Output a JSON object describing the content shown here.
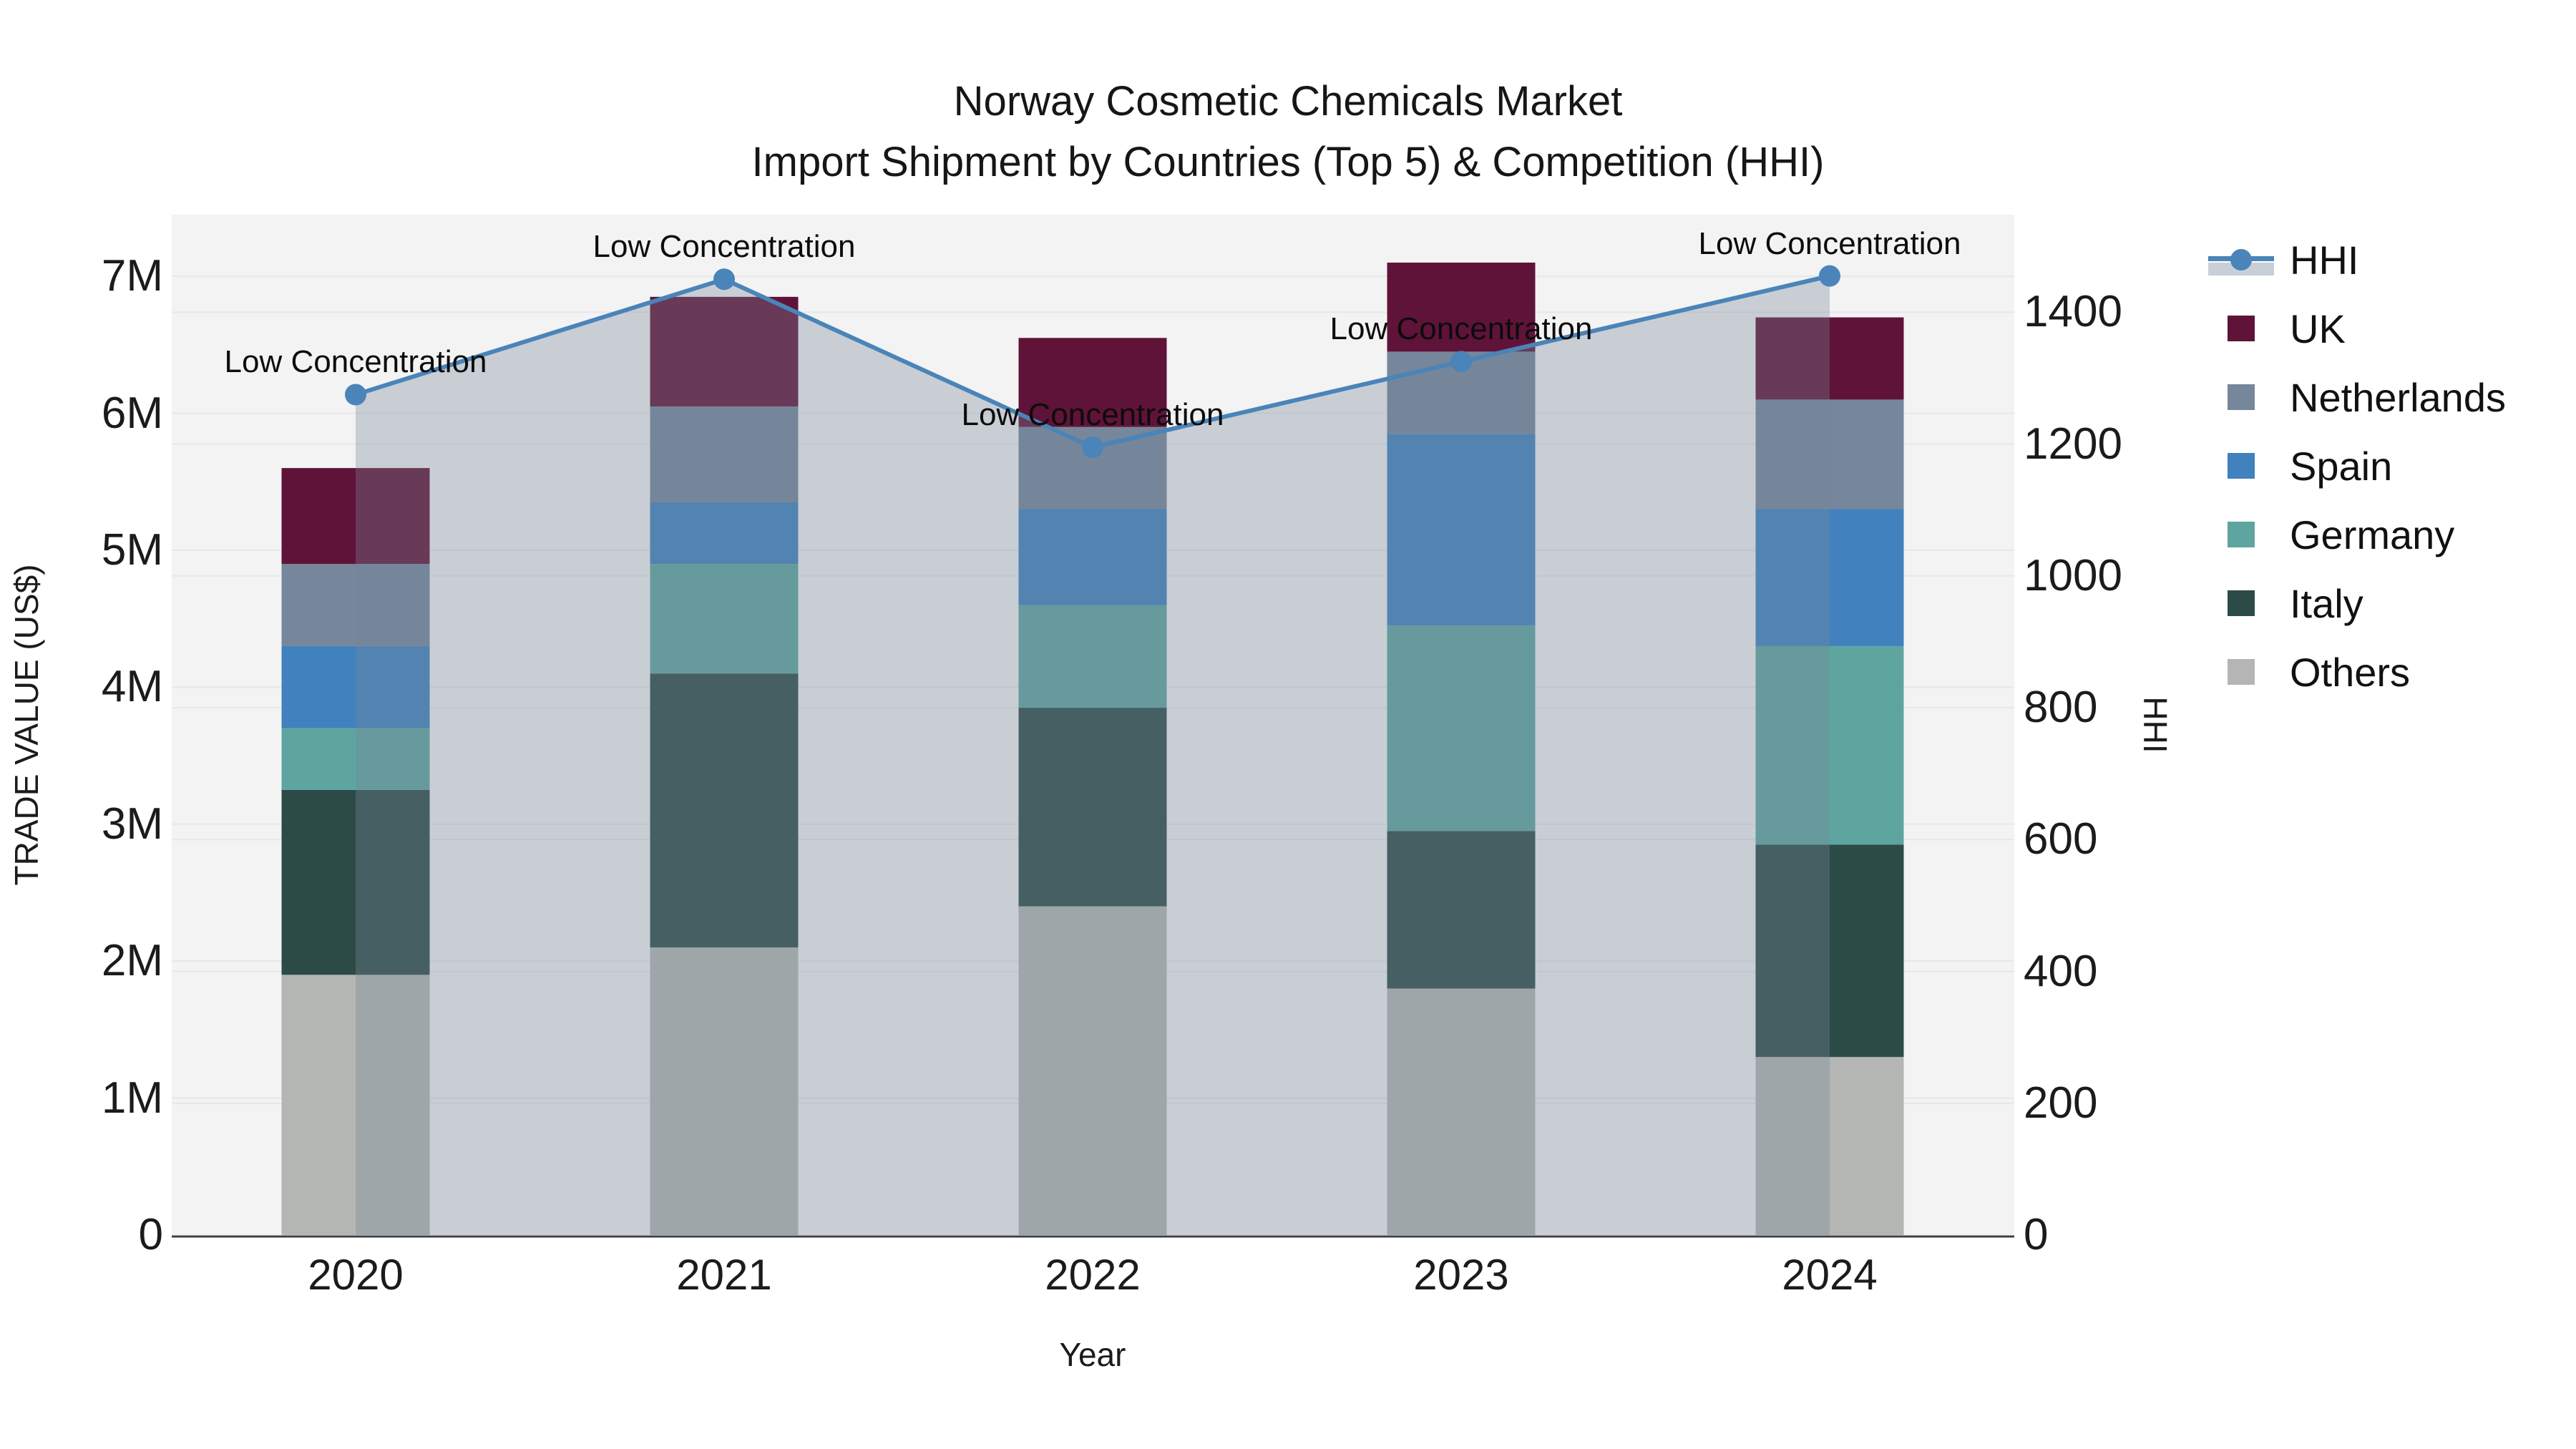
{
  "header": {
    "title": "Norway Cosmetic Chemicals Market",
    "subtitle": "Import Shipment by Countries (Top 5) & Competition (HHI)"
  },
  "axes": {
    "x": {
      "title": "Year",
      "ticks": [
        "2020",
        "2021",
        "2022",
        "2023",
        "2024"
      ]
    },
    "left": {
      "title": "TRADE VALUE (US$)",
      "ticks": [
        {
          "label": "0",
          "value": 0
        },
        {
          "label": "1M",
          "value": 1
        },
        {
          "label": "2M",
          "value": 2
        },
        {
          "label": "3M",
          "value": 3
        },
        {
          "label": "4M",
          "value": 4
        },
        {
          "label": "5M",
          "value": 5
        },
        {
          "label": "6M",
          "value": 6
        },
        {
          "label": "7M",
          "value": 7
        }
      ]
    },
    "right": {
      "title": "HHI",
      "ticks": [
        {
          "label": "0",
          "value": 0
        },
        {
          "label": "200",
          "value": 200
        },
        {
          "label": "400",
          "value": 400
        },
        {
          "label": "600",
          "value": 600
        },
        {
          "label": "800",
          "value": 800
        },
        {
          "label": "1000",
          "value": 1000
        },
        {
          "label": "1200",
          "value": 1200
        },
        {
          "label": "1400",
          "value": 1400
        }
      ]
    }
  },
  "legend": {
    "items": [
      {
        "label": "HHI",
        "type": "line",
        "color": "#4a84b8"
      },
      {
        "label": "UK",
        "type": "swatch",
        "color": "#601338"
      },
      {
        "label": "Netherlands",
        "type": "swatch",
        "color": "#76869b"
      },
      {
        "label": "Spain",
        "type": "swatch",
        "color": "#4181bd"
      },
      {
        "label": "Germany",
        "type": "swatch",
        "color": "#5ea5a0"
      },
      {
        "label": "Italy",
        "type": "swatch",
        "color": "#2c4b47"
      },
      {
        "label": "Others",
        "type": "swatch",
        "color": "#b3b6b3"
      }
    ]
  },
  "chart_data": {
    "type": "combo-stacked-bar-line",
    "title": "Norway Cosmetic Chemicals Market Import Shipment by Countries (Top 5) & Competition (HHI)",
    "categories": [
      "2020",
      "2021",
      "2022",
      "2023",
      "2024"
    ],
    "unit_left": "M US$",
    "ylim_left": [
      0,
      7.45
    ],
    "ylim_right": [
      0,
      1548
    ],
    "grid": {
      "left_step_M": 1,
      "right_step": 200
    },
    "legend_position": "right",
    "series": [
      {
        "name": "Others",
        "values": [
          1.9,
          2.1,
          2.4,
          1.8,
          1.3
        ],
        "color": "#b3b6b3"
      },
      {
        "name": "Italy",
        "values": [
          1.35,
          2.0,
          1.45,
          1.15,
          1.55
        ],
        "color": "#2c4b47"
      },
      {
        "name": "Germany",
        "values": [
          0.45,
          0.8,
          0.75,
          1.5,
          1.45
        ],
        "color": "#5ea5a0"
      },
      {
        "name": "Spain",
        "values": [
          0.6,
          0.45,
          0.7,
          1.4,
          1.0
        ],
        "color": "#4181bd"
      },
      {
        "name": "Netherlands",
        "values": [
          0.6,
          0.7,
          0.6,
          0.6,
          0.8
        ],
        "color": "#76869b"
      },
      {
        "name": "UK",
        "values": [
          0.7,
          0.8,
          0.65,
          0.65,
          0.6
        ],
        "color": "#601338"
      }
    ],
    "bar_totals_M": [
      5.6,
      6.85,
      6.55,
      7.1,
      6.7
    ],
    "line_series": {
      "name": "HHI",
      "axis": "right",
      "values": [
        1275,
        1450,
        1195,
        1325,
        1455
      ],
      "color": "#4a84b8",
      "area_fill": "rgba(120,135,152,0.34)",
      "point_labels": [
        "Low Concentration",
        "Low Concentration",
        "Low Concentration",
        "Low Concentration",
        "Low Concentration"
      ]
    },
    "style": {
      "plot_bg": "#f3f3f4",
      "grid_color": "#e7e7ea",
      "axis_line": "#3f3f44",
      "text_color": "#151515"
    }
  }
}
